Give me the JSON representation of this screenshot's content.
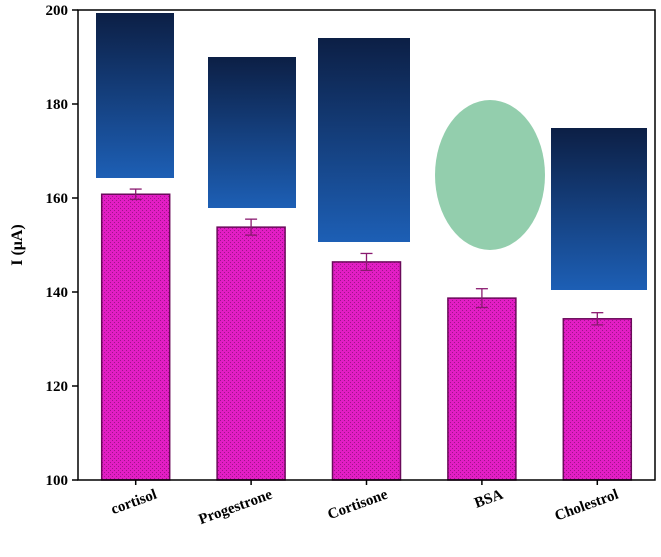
{
  "chart_data": {
    "type": "bar",
    "y_label": "I (μA)",
    "categories": [
      "cortisol",
      "Progestrone",
      "Cortisone",
      "BSA",
      "Cholestrol"
    ],
    "values": [
      160.8,
      153.8,
      146.4,
      138.7,
      134.3
    ],
    "errors": [
      1.1,
      1.7,
      1.8,
      2.0,
      1.3
    ],
    "color": "#e21ec4",
    "ylim": [
      100,
      200
    ],
    "yticks": [
      100,
      120,
      140,
      160,
      180,
      200
    ]
  }
}
